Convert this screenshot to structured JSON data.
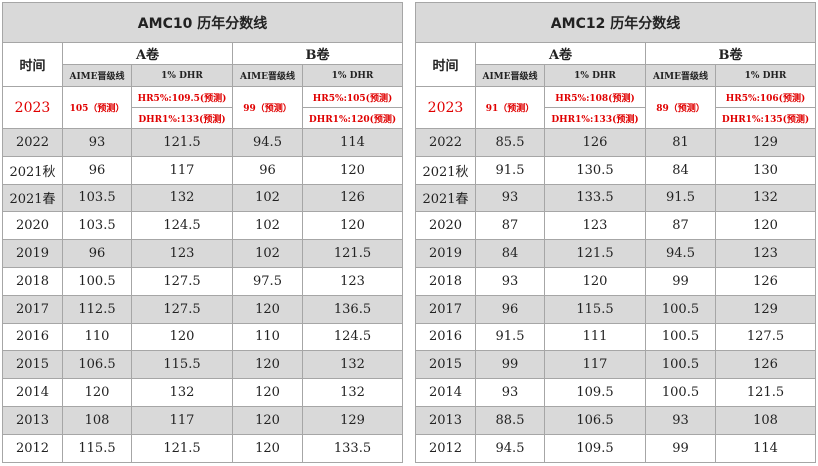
{
  "tables": [
    {
      "title": "AMC10 历年分数线",
      "time_header": "时间",
      "a_header": "A卷",
      "b_header": "B卷",
      "aime_header": "AIME晋级线",
      "dhr_header": "1% DHR",
      "pred": {
        "year": "2023",
        "a_aime": "105（预测）",
        "a_hr": "HR5%:109.5(预测)",
        "a_dhr": "DHR1%:133(预测)",
        "b_aime": "99（预测）",
        "b_hr": "HR5%:105(预测)",
        "b_dhr": "DHR1%:120(预测)"
      },
      "rows": [
        [
          "2022",
          "93",
          "121.5",
          "94.5",
          "114"
        ],
        [
          "2021秋",
          "96",
          "117",
          "96",
          "120"
        ],
        [
          "2021春",
          "103.5",
          "132",
          "102",
          "126"
        ],
        [
          "2020",
          "103.5",
          "124.5",
          "102",
          "120"
        ],
        [
          "2019",
          "96",
          "123",
          "102",
          "121.5"
        ],
        [
          "2018",
          "100.5",
          "127.5",
          "97.5",
          "123"
        ],
        [
          "2017",
          "112.5",
          "127.5",
          "120",
          "136.5"
        ],
        [
          "2016",
          "110",
          "120",
          "110",
          "124.5"
        ],
        [
          "2015",
          "106.5",
          "115.5",
          "120",
          "132"
        ],
        [
          "2014",
          "120",
          "132",
          "120",
          "132"
        ],
        [
          "2013",
          "108",
          "117",
          "120",
          "129"
        ],
        [
          "2012",
          "115.5",
          "121.5",
          "120",
          "133.5"
        ]
      ]
    },
    {
      "title": "AMC12 历年分数线",
      "time_header": "时间",
      "a_header": "A卷",
      "b_header": "B卷",
      "aime_header": "AIME晋级线",
      "dhr_header": "1% DHR",
      "pred": {
        "year": "2023",
        "a_aime": "91（预测）",
        "a_hr": "HR5%:108(预测)",
        "a_dhr": "DHR1%:133(预测)",
        "b_aime": "89（预测）",
        "b_hr": "HR5%:106(预测)",
        "b_dhr": "DHR1%:135(预测)"
      },
      "rows": [
        [
          "2022",
          "85.5",
          "126",
          "81",
          "129"
        ],
        [
          "2021秋",
          "91.5",
          "130.5",
          "84",
          "130"
        ],
        [
          "2021春",
          "93",
          "133.5",
          "91.5",
          "132"
        ],
        [
          "2020",
          "87",
          "123",
          "87",
          "120"
        ],
        [
          "2019",
          "84",
          "121.5",
          "94.5",
          "123"
        ],
        [
          "2018",
          "93",
          "120",
          "99",
          "126"
        ],
        [
          "2017",
          "96",
          "115.5",
          "100.5",
          "129"
        ],
        [
          "2016",
          "91.5",
          "111",
          "100.5",
          "127.5"
        ],
        [
          "2015",
          "99",
          "117",
          "100.5",
          "126"
        ],
        [
          "2014",
          "93",
          "109.5",
          "100.5",
          "121.5"
        ],
        [
          "2013",
          "88.5",
          "106.5",
          "93",
          "108"
        ],
        [
          "2012",
          "94.5",
          "109.5",
          "99",
          "114"
        ]
      ]
    }
  ],
  "colors": {
    "header_gray": "#d9d9d9",
    "prediction_red": "#e00000"
  }
}
